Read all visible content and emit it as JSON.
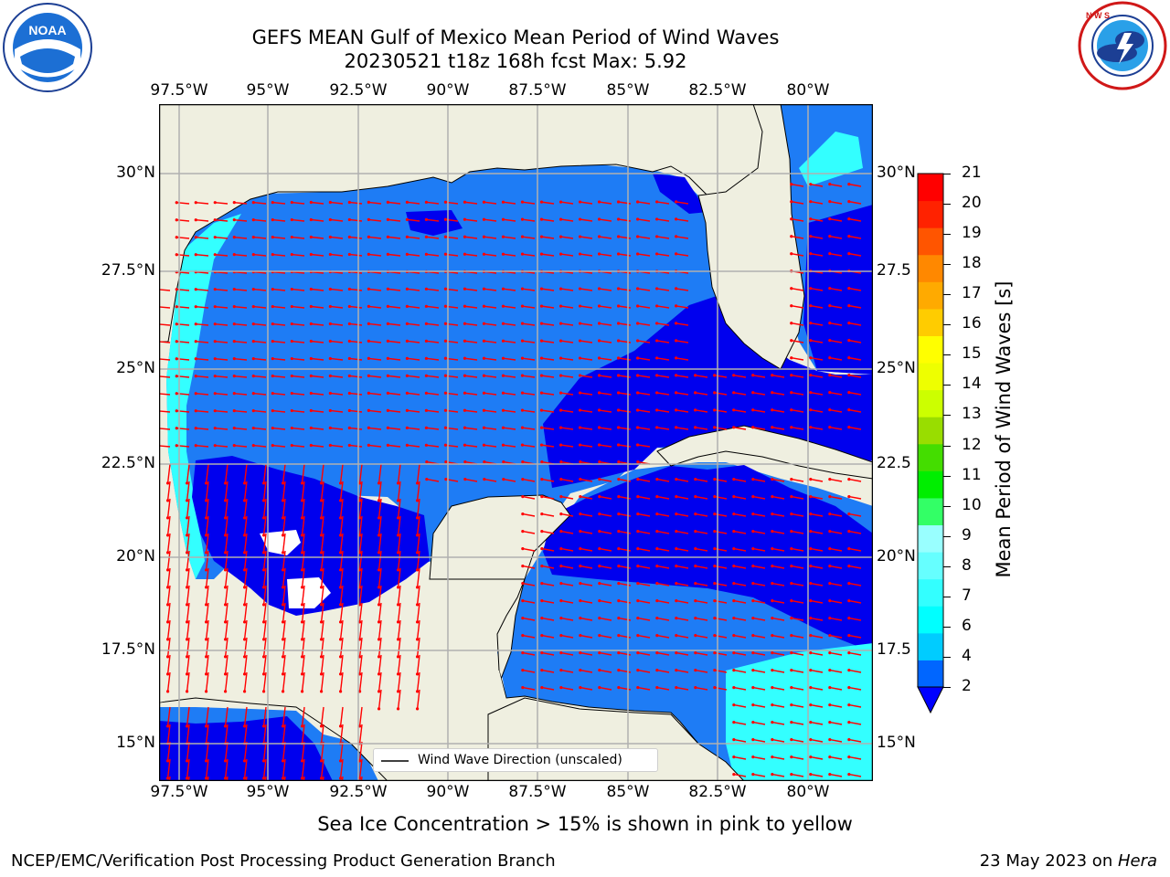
{
  "header": {
    "title_line1": "GEFS MEAN Gulf of Mexico Mean Period of Wind Waves",
    "title_line2": "20230521 t18z 168h fcst   Max: 5.92"
  },
  "logos": {
    "left_text": "NOAA",
    "left_ring_text": "NATIONAL OCEANIC AND ATMOSPHERIC ADMINISTRATION · U.S. DEPARTMENT OF COMMERCE",
    "right_ring_text": "NATIONAL WEATHER SERVICE"
  },
  "map": {
    "lon_labels": [
      "97.5°W",
      "95°W",
      "92.5°W",
      "90°W",
      "87.5°W",
      "85°W",
      "82.5°W",
      "80°W"
    ],
    "lat_labels": [
      "30°N",
      "27.5°N",
      "25°N",
      "22.5°N",
      "20°N",
      "17.5°N",
      "15°N"
    ],
    "lat_labels_right": [
      "30°N",
      "27.5",
      "25°N",
      "22.5",
      "20°N",
      "17.5",
      "15°N"
    ],
    "legend_label": "Wind Wave Direction (unscaled)"
  },
  "colorbar": {
    "label": "Mean Period of Wind Waves [s]",
    "ticks": [
      "2",
      "4",
      "6",
      "7",
      "8",
      "9",
      "10",
      "11",
      "12",
      "13",
      "14",
      "15",
      "16",
      "17",
      "18",
      "19",
      "20",
      "21"
    ],
    "colors": [
      "#0066ff",
      "#00ccff",
      "#00ffff",
      "#33ffff",
      "#66ffff",
      "#99ffff",
      "#33ff66",
      "#00ee00",
      "#44dd00",
      "#99dd00",
      "#ccff00",
      "#eeff00",
      "#ffff00",
      "#ffcc00",
      "#ffaa00",
      "#ff8800",
      "#ff5500",
      "#ff2200",
      "#ff0000"
    ],
    "extend_color": "#0000ff"
  },
  "caption": "Sea Ice Concentration > 15% is shown in pink to yellow",
  "footer": {
    "left": "NCEP/EMC/Verification Post Processing Product Generation Branch",
    "right_date": "23 May 2023 on ",
    "right_host": "Hera"
  },
  "palette": {
    "land": "#efefe0",
    "ocean_mid": "#1e7cf5",
    "ocean_deep": "#0000ee",
    "ocean_cyan": "#00ffff",
    "arrow": "#ff0000",
    "grid": "#b0b0b0"
  }
}
